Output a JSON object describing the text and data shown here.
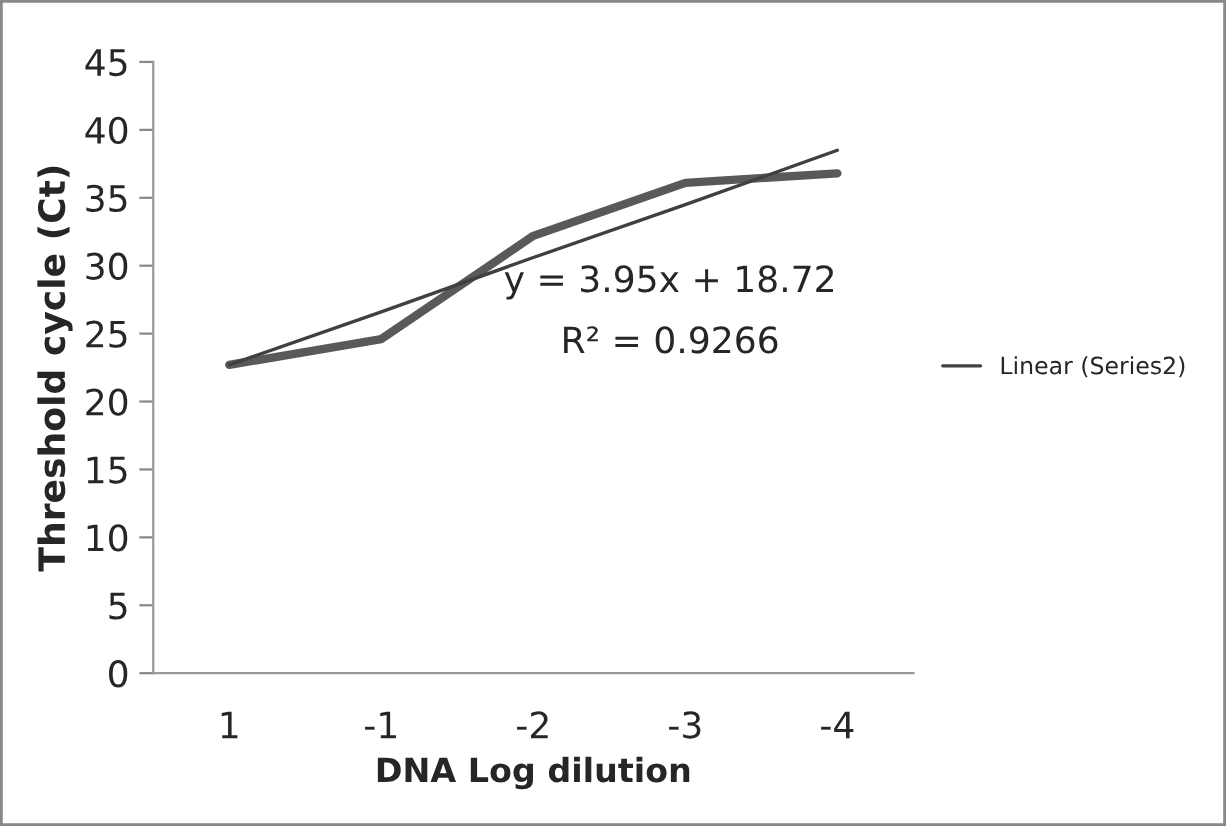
{
  "chart_data": {
    "type": "line",
    "xlabel": "DNA Log dilution",
    "ylabel": "Threshold cycle (Ct)",
    "categories": [
      "1",
      "-1",
      "-2",
      "-3",
      "-4"
    ],
    "series": [
      {
        "color": "#595959",
        "values": [
          22.7,
          24.6,
          32.2,
          36.1,
          36.8
        ]
      },
      {
        "name": "Linear (Series2)",
        "color": "#404040",
        "values": [
          22.7,
          26.6,
          30.6,
          34.5,
          38.5
        ]
      }
    ],
    "ylim": [
      0,
      45
    ],
    "yticks": [
      0,
      5,
      10,
      15,
      20,
      25,
      30,
      35,
      40,
      45
    ],
    "annotations": [
      "y = 3.95x + 18.72",
      "R² = 0.9266"
    ],
    "grid": false,
    "legend": "right",
    "marker": "none",
    "line_style": "solid"
  }
}
